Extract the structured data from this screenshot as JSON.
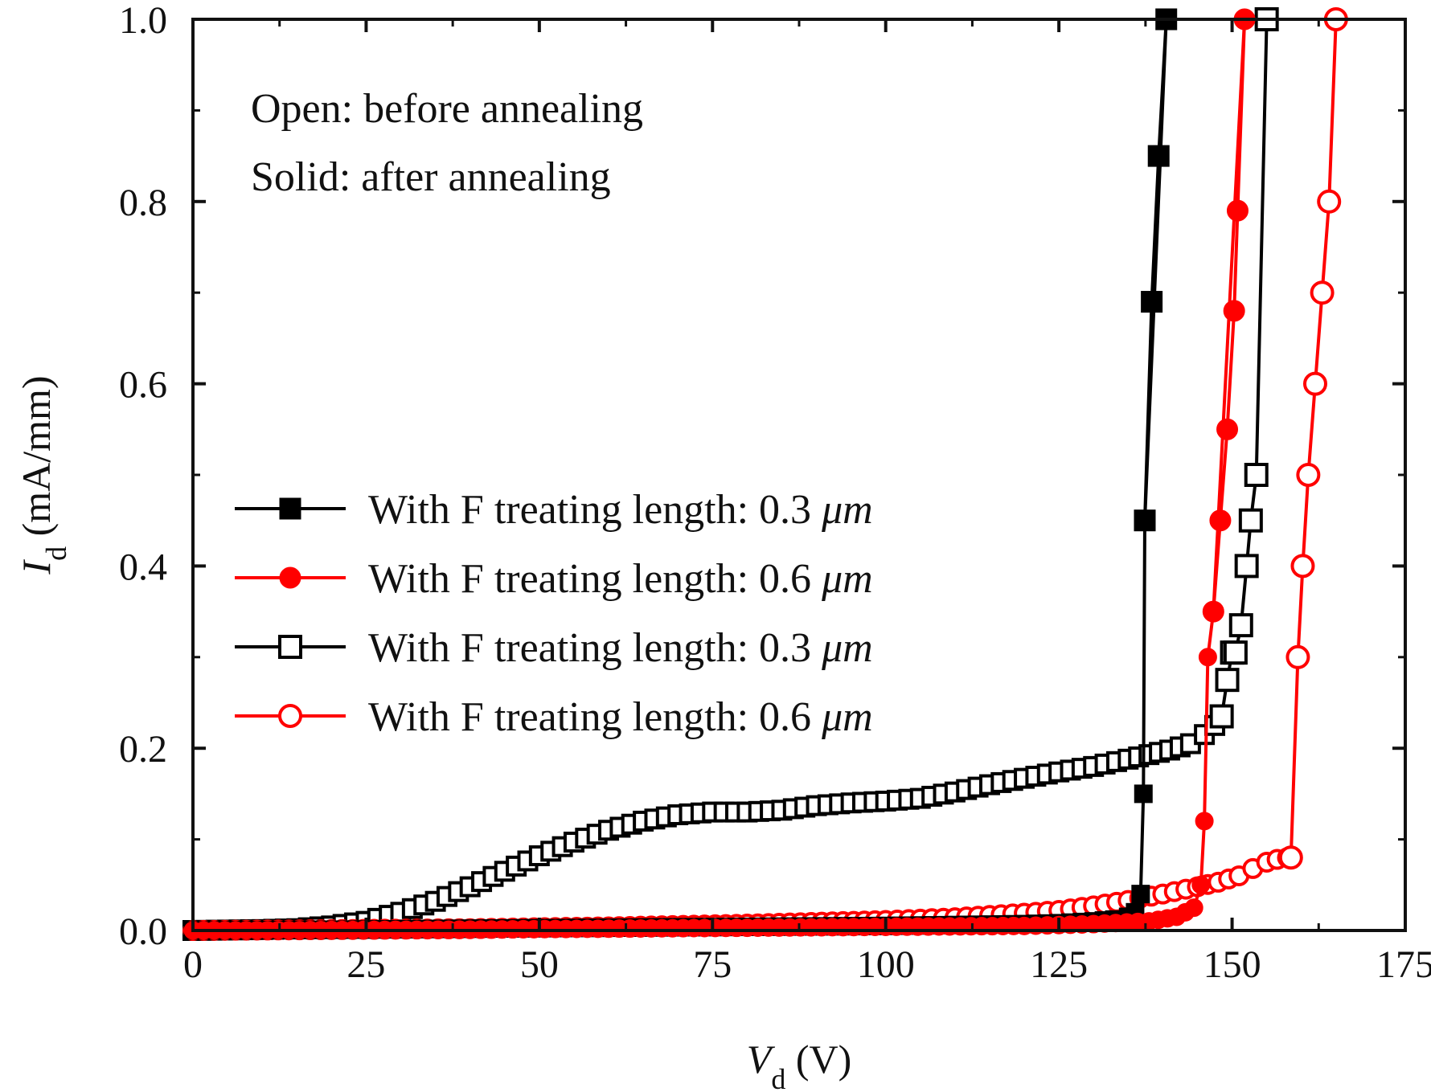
{
  "chart_data": {
    "type": "line",
    "xlabel": {
      "symbol": "V",
      "sub": "d",
      "unit": " (V)"
    },
    "ylabel": {
      "symbol": "I",
      "sub": "d",
      "unit": " (mA/mm)"
    },
    "xlim": [
      0,
      175
    ],
    "ylim": [
      0,
      1.0
    ],
    "xticks": [
      0,
      25,
      50,
      75,
      100,
      125,
      150,
      175
    ],
    "xtick_labels": [
      "0",
      "25",
      "50",
      "75",
      "100",
      "125",
      "150",
      "175"
    ],
    "yticks": [
      0,
      0.2,
      0.4,
      0.6,
      0.8,
      1.0
    ],
    "ytick_labels": [
      "0.0",
      "0.2",
      "0.4",
      "0.6",
      "0.8",
      "1.0"
    ],
    "grid": false,
    "legend_position": "center-left",
    "annotations": [
      "Open: before annealing",
      "Solid: after annealing"
    ],
    "series": [
      {
        "name": "With F treating length: 0.3 μm",
        "name_prefix": "With F treating length: 0.3 ",
        "name_unit": "μm",
        "color": "#000000",
        "marker": "square",
        "filled": true,
        "label": {
          "x": [
            137.4,
            138.4,
            139.4,
            140.5
          ],
          "y": [
            0.45,
            0.69,
            0.85,
            1.0
          ]
        },
        "curve": [
          [
            0,
            0
          ],
          [
            20,
            0.0008
          ],
          [
            40,
            0.002
          ],
          [
            60,
            0.003
          ],
          [
            80,
            0.004
          ],
          [
            100,
            0.005
          ],
          [
            110,
            0.006
          ],
          [
            120,
            0.007
          ],
          [
            125,
            0.008
          ],
          [
            130,
            0.01
          ],
          [
            133,
            0.012
          ],
          [
            135,
            0.015
          ],
          [
            136,
            0.02
          ],
          [
            136.8,
            0.04
          ],
          [
            137.2,
            0.15
          ],
          [
            137.4,
            0.45
          ],
          [
            138.4,
            0.69
          ],
          [
            139.4,
            0.85
          ],
          [
            140.5,
            1.0
          ]
        ]
      },
      {
        "name": "With F treating length: 0.6 μm",
        "name_prefix": "With F treating length: 0.6 ",
        "name_unit": "μm",
        "color": "#ff0000",
        "marker": "circle",
        "filled": true,
        "label": {
          "x": [
            147.3,
            148.3,
            149.3,
            150.3,
            150.8,
            151.8
          ],
          "y": [
            0.35,
            0.45,
            0.55,
            0.68,
            0.79,
            1.0
          ]
        },
        "curve": [
          [
            0,
            0
          ],
          [
            20,
            0.0005
          ],
          [
            40,
            0.001
          ],
          [
            60,
            0.002
          ],
          [
            80,
            0.003
          ],
          [
            100,
            0.004
          ],
          [
            120,
            0.005
          ],
          [
            130,
            0.007
          ],
          [
            138,
            0.01
          ],
          [
            142,
            0.015
          ],
          [
            144.5,
            0.025
          ],
          [
            145.5,
            0.05
          ],
          [
            146,
            0.12
          ],
          [
            146.5,
            0.3
          ],
          [
            147.3,
            0.35
          ],
          [
            148.3,
            0.45
          ],
          [
            149.3,
            0.55
          ],
          [
            150.3,
            0.68
          ],
          [
            150.8,
            0.79
          ],
          [
            151.8,
            1.0
          ]
        ]
      },
      {
        "name": "With F treating length: 0.3 μm",
        "name_prefix": "With F treating length: 0.3 ",
        "name_unit": "μm",
        "color": "#000000",
        "marker": "square",
        "filled": false,
        "label": {
          "x": [
            148.5,
            149.3,
            150.0,
            150.5,
            151.3,
            152.1,
            152.7,
            153.5,
            155.0
          ],
          "y": [
            0.235,
            0.275,
            0.305,
            0.305,
            0.335,
            0.4,
            0.45,
            0.5,
            1.0
          ]
        },
        "curve": [
          [
            0,
            0
          ],
          [
            5,
            0.0005
          ],
          [
            10,
            0.001
          ],
          [
            15,
            0.002
          ],
          [
            20,
            0.005
          ],
          [
            25,
            0.01
          ],
          [
            30,
            0.02
          ],
          [
            35,
            0.032
          ],
          [
            40,
            0.048
          ],
          [
            45,
            0.065
          ],
          [
            50,
            0.082
          ],
          [
            55,
            0.097
          ],
          [
            60,
            0.11
          ],
          [
            65,
            0.12
          ],
          [
            70,
            0.127
          ],
          [
            75,
            0.13
          ],
          [
            80,
            0.13
          ],
          [
            85,
            0.132
          ],
          [
            90,
            0.137
          ],
          [
            95,
            0.14
          ],
          [
            100,
            0.142
          ],
          [
            105,
            0.145
          ],
          [
            110,
            0.152
          ],
          [
            115,
            0.16
          ],
          [
            120,
            0.167
          ],
          [
            125,
            0.174
          ],
          [
            130,
            0.18
          ],
          [
            135,
            0.188
          ],
          [
            138,
            0.193
          ],
          [
            141,
            0.198
          ],
          [
            144,
            0.205
          ],
          [
            146,
            0.215
          ],
          [
            147.5,
            0.225
          ]
        ]
      },
      {
        "name": "With F treating length: 0.6 μm",
        "name_prefix": "With F treating length: 0.6 ",
        "name_unit": "μm",
        "color": "#ff0000",
        "marker": "circle",
        "filled": false,
        "label": {
          "x": [
            158.5,
            159.5,
            160.2,
            161.0,
            162.0,
            163.0,
            164.0,
            165.0
          ],
          "y": [
            0.08,
            0.3,
            0.4,
            0.5,
            0.6,
            0.7,
            0.8,
            1.0
          ]
        },
        "curve": [
          [
            0,
            0
          ],
          [
            20,
            0.001
          ],
          [
            40,
            0.002
          ],
          [
            60,
            0.004
          ],
          [
            80,
            0.007
          ],
          [
            100,
            0.011
          ],
          [
            110,
            0.014
          ],
          [
            120,
            0.019
          ],
          [
            125,
            0.022
          ],
          [
            130,
            0.027
          ],
          [
            135,
            0.033
          ],
          [
            140,
            0.04
          ],
          [
            145,
            0.048
          ],
          [
            148,
            0.053
          ],
          [
            151,
            0.06
          ],
          [
            153,
            0.068
          ],
          [
            155,
            0.075
          ],
          [
            156.5,
            0.078
          ],
          [
            158,
            0.08
          ]
        ]
      }
    ]
  }
}
